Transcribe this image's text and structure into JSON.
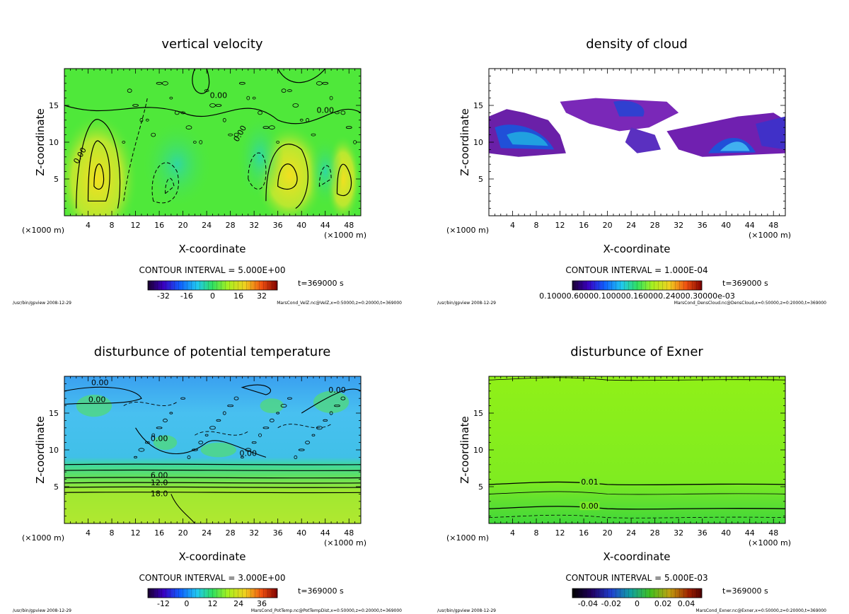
{
  "chart_data": [
    {
      "type": "heatmap",
      "title": "vertical velocity",
      "xlabel": "X-coordinate",
      "ylabel": "Z-coordinate",
      "xunit_left": "(×1000 m)",
      "xunit_right": "(×1000 m)",
      "xlim": [
        0,
        50
      ],
      "ylim": [
        0,
        20
      ],
      "xticks": [
        4,
        8,
        12,
        16,
        20,
        24,
        28,
        32,
        36,
        40,
        44,
        48
      ],
      "yticks": [
        5,
        10,
        15
      ],
      "contour_interval": "CONTOUR INTERVAL = 5.000E+00",
      "time": "t=369000 s",
      "colorbar_ticks": [
        "-32",
        "-16",
        "0",
        "16",
        "32"
      ],
      "contour_labels": [
        "0.00",
        "0.00",
        "0.00",
        "0.00"
      ],
      "footer_left": "/usr/bin/gpview  2008-12-29",
      "footer_right": "MarsCond_VelZ.nc@VelZ,x=0:50000,z=0:20000,t=369000",
      "background_color": "#4fe83a"
    },
    {
      "type": "heatmap",
      "title": "density of cloud",
      "xlabel": "X-coordinate",
      "ylabel": "Z-coordinate",
      "xunit_left": "(×1000 m)",
      "xunit_right": "(×1000 m)",
      "xlim": [
        0,
        50
      ],
      "ylim": [
        0,
        20
      ],
      "xticks": [
        4,
        8,
        12,
        16,
        20,
        24,
        28,
        32,
        36,
        40,
        44,
        48
      ],
      "yticks": [
        5,
        10,
        15
      ],
      "contour_interval": "CONTOUR INTERVAL = 1.000E-04",
      "time": "t=369000 s",
      "colorbar_ticks": [
        "0.10000.60000.100000.160000.24000.30000e-03"
      ],
      "footer_left": "/usr/bin/gpview  2008-12-29",
      "footer_right": "MarsCond_DensCloud.nc@DensCloud,x=0:50000,z=0:20000,t=369000",
      "background_color": "#ffffff"
    },
    {
      "type": "heatmap",
      "title": "disturbunce of potential temperature",
      "xlabel": "X-coordinate",
      "ylabel": "Z-coordinate",
      "xunit_left": "(×1000 m)",
      "xunit_right": "(×1000 m)",
      "xlim": [
        0,
        50
      ],
      "ylim": [
        0,
        20
      ],
      "xticks": [
        4,
        8,
        12,
        16,
        20,
        24,
        28,
        32,
        36,
        40,
        44,
        48
      ],
      "yticks": [
        5,
        10,
        15
      ],
      "contour_interval": "CONTOUR INTERVAL = 3.000E+00",
      "time": "t=369000 s",
      "colorbar_ticks": [
        "-12",
        "0",
        "12",
        "24",
        "36"
      ],
      "contour_labels": [
        "0.00",
        "0.00",
        "0.00",
        "0.00",
        "0.00",
        "6.00",
        "12.0",
        "18.0"
      ],
      "footer_left": "/usr/bin/gpview  2008-12-29",
      "footer_right": "MarsCond_PotTemp.nc@PotTempDist,x=0:50000,z=0:20000,t=369000",
      "background_color": "#3fb8f0"
    },
    {
      "type": "heatmap",
      "title": "disturbunce of Exner",
      "xlabel": "X-coordinate",
      "ylabel": "Z-coordinate",
      "xunit_left": "(×1000 m)",
      "xunit_right": "(×1000 m)",
      "xlim": [
        0,
        50
      ],
      "ylim": [
        0,
        20
      ],
      "xticks": [
        4,
        8,
        12,
        16,
        20,
        24,
        28,
        32,
        36,
        40,
        44,
        48
      ],
      "yticks": [
        5,
        10,
        15
      ],
      "contour_interval": "CONTOUR INTERVAL = 5.000E-03",
      "time": "t=369000 s",
      "colorbar_ticks": [
        "-0.04",
        "-0.02",
        "0",
        "0.02",
        "0.04"
      ],
      "contour_labels": [
        "0.01",
        "0.00"
      ],
      "footer_left": "/usr/bin/gpview  2008-12-29",
      "footer_right": "MarsCond_Exner.nc@Exner,x=0:50000,z=0:20000,t=369000",
      "background_color": "#8ef019"
    }
  ]
}
